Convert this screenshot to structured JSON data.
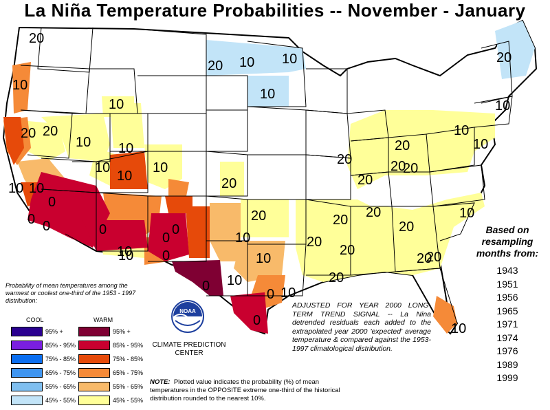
{
  "title": "La Niña Temperature Probabilities  --  November - January",
  "colors": {
    "warm_95_plus": "#7f0033",
    "warm_85_95": "#c9002f",
    "warm_75_85": "#e64a0a",
    "warm_65_75": "#f58a38",
    "warm_55_65": "#f8ba6a",
    "warm_45_55": "#ffff99",
    "cool_95_plus": "#2a0090",
    "cool_85_95": "#7a1fe0",
    "cool_75_85": "#0a6ef0",
    "cool_65_75": "#3f95f0",
    "cool_55_65": "#7fbff0",
    "cool_45_55": "#c2e4f8"
  },
  "map_labels": [
    {
      "id": "wa",
      "text": "20"
    },
    {
      "id": "or",
      "text": "10"
    },
    {
      "id": "id",
      "text": "10"
    },
    {
      "id": "nd-w",
      "text": "20"
    },
    {
      "id": "nd-e",
      "text": "10"
    },
    {
      "id": "mn",
      "text": "10"
    },
    {
      "id": "mn-s",
      "text": "10"
    },
    {
      "id": "me",
      "text": "20"
    },
    {
      "id": "ne-coast",
      "text": "10"
    },
    {
      "id": "nca",
      "text": "20"
    },
    {
      "id": "nv",
      "text": "20"
    },
    {
      "id": "ut",
      "text": "10"
    },
    {
      "id": "wy",
      "text": "10"
    },
    {
      "id": "nv-s",
      "text": "10"
    },
    {
      "id": "co",
      "text": "10"
    },
    {
      "id": "co-e",
      "text": "10"
    },
    {
      "id": "ca-c",
      "text": "10"
    },
    {
      "id": "ca-c2",
      "text": "10"
    },
    {
      "id": "ks",
      "text": "20"
    },
    {
      "id": "oh",
      "text": "20"
    },
    {
      "id": "pa",
      "text": "10"
    },
    {
      "id": "nj",
      "text": "10"
    },
    {
      "id": "wv",
      "text": "20"
    },
    {
      "id": "il-s",
      "text": "20"
    },
    {
      "id": "ky",
      "text": "20"
    },
    {
      "id": "ky-e",
      "text": "20"
    },
    {
      "id": "nc",
      "text": "10"
    },
    {
      "id": "ok",
      "text": "20"
    },
    {
      "id": "ar",
      "text": "20"
    },
    {
      "id": "tn",
      "text": "20"
    },
    {
      "id": "ok-s",
      "text": "10"
    },
    {
      "id": "sc",
      "text": "20"
    },
    {
      "id": "ms",
      "text": "20"
    },
    {
      "id": "al",
      "text": "20"
    },
    {
      "id": "ga",
      "text": "20"
    },
    {
      "id": "tx-e",
      "text": "10"
    },
    {
      "id": "nm-s",
      "text": "10"
    },
    {
      "id": "tx-c",
      "text": "10"
    },
    {
      "id": "la",
      "text": "20"
    },
    {
      "id": "la-coast",
      "text": "10"
    },
    {
      "id": "tx-se",
      "text": "0"
    },
    {
      "id": "tx-s",
      "text": "0"
    },
    {
      "id": "tx-w",
      "text": "0"
    },
    {
      "id": "az-w",
      "text": "0"
    },
    {
      "id": "az-c",
      "text": "0"
    },
    {
      "id": "ca-s",
      "text": "0"
    },
    {
      "id": "ca-sw",
      "text": "0"
    },
    {
      "id": "nm",
      "text": "0"
    },
    {
      "id": "nm-2",
      "text": "0"
    },
    {
      "id": "az-s",
      "text": "10"
    },
    {
      "id": "nm-e",
      "text": "0"
    },
    {
      "id": "fl",
      "text": "10"
    },
    {
      "id": "fl-n",
      "text": "20"
    }
  ],
  "probability_description": "Probability of mean temperatures among the warmest or coolest one-third of the 1953 - 1997 distribution:",
  "legend": {
    "cool_title": "COOL",
    "warm_title": "WARM",
    "rows": [
      {
        "cool": "95% +",
        "warm": "95% +"
      },
      {
        "cool": "85% - 95%",
        "warm": "85% - 95%"
      },
      {
        "cool": "75% - 85%",
        "warm": "75% - 85%"
      },
      {
        "cool": "65% - 75%",
        "warm": "65% - 75%"
      },
      {
        "cool": "55% - 65%",
        "warm": "55% - 65%"
      },
      {
        "cool": "45% - 55%",
        "warm": "45% - 55%"
      }
    ]
  },
  "logo_text": "NOAA",
  "center_name": "CLIMATE PREDICTION CENTER",
  "adjusted_note": "ADJUSTED FOR YEAR 2000 LONG-TERM TREND SIGNAL -- La Nina detrended residuals each added to the extrapolated year 2000 'expected' average temperature & compared against the 1953-1997 climatological distribution.",
  "note_label": "NOTE:",
  "note_text": "Plotted value indicates the probability (%) of mean temperatures in the OPPOSITE extreme one-third of the historical distribution rounded to the nearest 10%.",
  "resample_heading": "Based on resampling months from:",
  "years": [
    "1943",
    "1951",
    "1956",
    "1965",
    "1971",
    "1974",
    "1976",
    "1989",
    "1999"
  ]
}
